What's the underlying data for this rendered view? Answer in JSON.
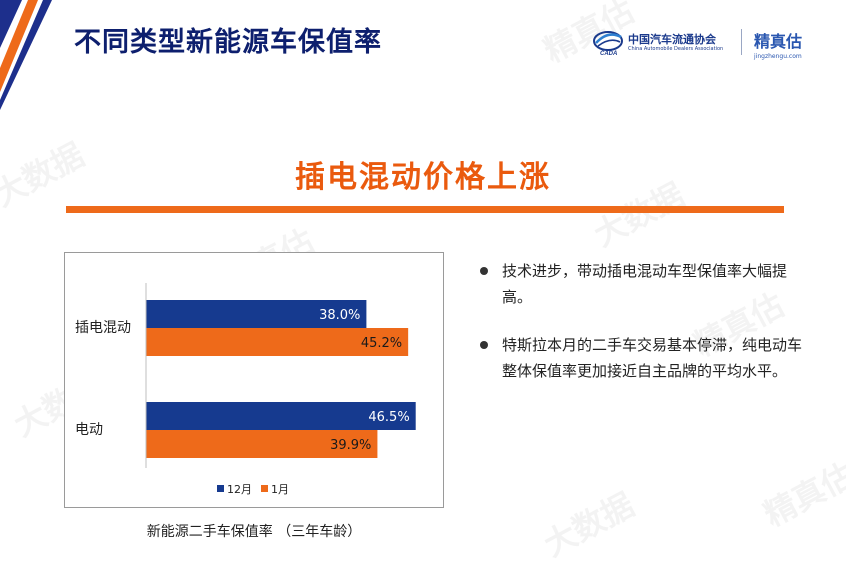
{
  "header": {
    "title": "不同类型新能源车保值率",
    "logo_caada_cn": "中国汽车流通协会",
    "logo_caada_en": "China Automobile Dealers Association",
    "logo_jzg_cn": "精真估",
    "logo_jzg_en": "jingzhengu.com"
  },
  "section": {
    "subtitle": "插电混动价格上涨"
  },
  "colors": {
    "navy": "#163a8f",
    "orange": "#ee6a1a",
    "title": "#0d1f6e"
  },
  "chart_data": {
    "type": "bar",
    "orientation": "horizontal",
    "categories": [
      "插电混动",
      "电动"
    ],
    "series": [
      {
        "name": "12月",
        "values": [
          38.0,
          46.5
        ],
        "labels": [
          "38.0%",
          "46.5%"
        ]
      },
      {
        "name": "1月",
        "values": [
          45.2,
          39.9
        ],
        "labels": [
          "45.2%",
          "39.9%"
        ]
      }
    ],
    "legend_position": "bottom",
    "grid": false,
    "caption": "新能源二手车保值率 （三年车龄）"
  },
  "bullets": [
    "技术进步，带动插电混动车型保值率大幅提高。",
    "特斯拉本月的二手车交易基本停滞，纯电动车整体保值率更加接近自主品牌的平均水平。"
  ],
  "watermarks": [
    "精真估",
    "大数据"
  ]
}
